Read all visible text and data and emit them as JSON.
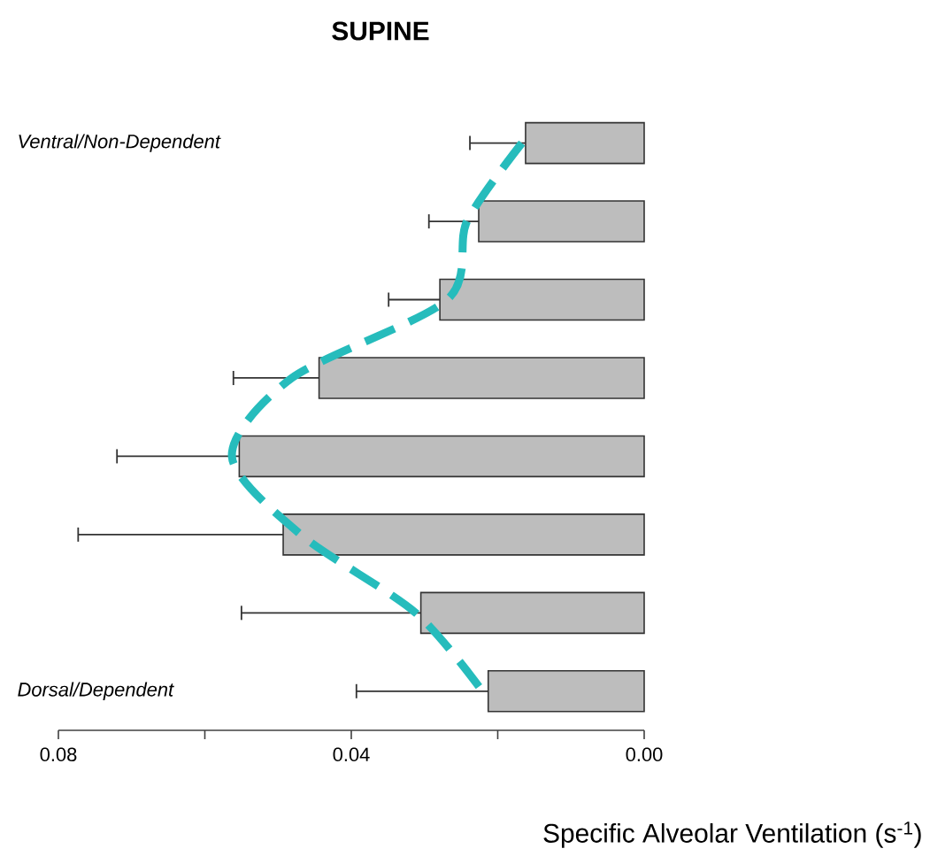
{
  "chart_data": {
    "type": "bar",
    "orientation": "horizontal",
    "title": "SUPINE",
    "xlabel": "Specific Alveolar Ventilation (s$^{-1}$)",
    "categories": [
      "Ventral/Non-Dependent",
      null,
      null,
      null,
      null,
      null,
      null,
      "Dorsal/Dependent"
    ],
    "xlim": [
      0.08,
      0
    ],
    "xticks": [
      0.08,
      {
        "value": 0.06,
        "label": null
      },
      0.04,
      {
        "value": 0.02,
        "label": null
      },
      {
        "value": 0,
        "label": "0.00"
      }
    ],
    "grid": false,
    "series": [
      {
        "color": "#bdbdbd",
        "values": [
          0.0162,
          0.0226,
          0.0279,
          0.0444,
          0.0553,
          0.0493,
          0.0305,
          0.0213
        ],
        "errors": [
          [
            0.0162,
            0.0238
          ],
          [
            0.0226,
            0.0294
          ],
          [
            0.0279,
            0.0349
          ],
          [
            0.0444,
            0.0561
          ],
          [
            0.0553,
            0.072
          ],
          [
            0.0493,
            0.0773
          ],
          [
            0.0305,
            0.055
          ],
          [
            0.0213,
            0.0393
          ]
        ]
      },
      {
        "type": "line",
        "color": "#26bcbc",
        "line_style": "dashed",
        "marker": "none",
        "values": [
          0.0167,
          0.0242,
          0.0269,
          0.0481,
          0.0563,
          0.0469,
          0.0312,
          0.0221
        ]
      }
    ]
  }
}
